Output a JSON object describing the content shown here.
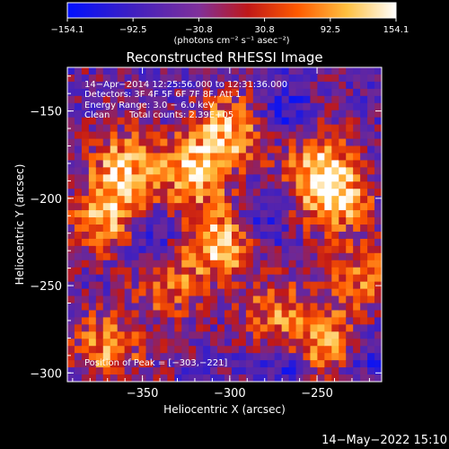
{
  "chart_data": {
    "type": "heatmap",
    "title": "Reconstructed RHESSI Image",
    "xlabel": "Heliocentric X (arcsec)",
    "ylabel": "Heliocentric Y (arcsec)",
    "xlim": [
      -393,
      -213
    ],
    "ylim": [
      -305,
      -125
    ],
    "x_ticks": [
      -350,
      -300,
      -250
    ],
    "y_ticks": [
      -150,
      -200,
      -250,
      -300
    ],
    "x_tick_labels": [
      "−350",
      "−300",
      "−250"
    ],
    "y_tick_labels": [
      "−150",
      "−200",
      "−250",
      "−300"
    ],
    "colorbar": {
      "range": [
        -154.1,
        154.1
      ],
      "ticks": [
        -154.1,
        -92.5,
        -30.8,
        30.8,
        92.5,
        154.1
      ],
      "tick_labels": [
        "−154.1",
        "−92.5",
        "−30.8",
        "30.8",
        "92.5",
        "154.1"
      ],
      "label": "(photons cm⁻² s⁻¹ asec⁻²)",
      "colors": [
        "#0010ff",
        "#5a1fa8",
        "#8a2f8a",
        "#c01010",
        "#ff6a00",
        "#ffd24a",
        "#ffffff"
      ]
    },
    "peak_position": [
      -303,
      -221
    ],
    "bright_regions": [
      {
        "x": -370,
        "y": -210,
        "level": 0.85
      },
      {
        "x": -360,
        "y": -180,
        "level": 0.75
      },
      {
        "x": -320,
        "y": -185,
        "level": 0.9
      },
      {
        "x": -305,
        "y": -225,
        "level": 1.0
      },
      {
        "x": -300,
        "y": -160,
        "level": 0.8
      },
      {
        "x": -240,
        "y": -200,
        "level": 0.9
      },
      {
        "x": -250,
        "y": -180,
        "level": 0.7
      },
      {
        "x": -245,
        "y": -285,
        "level": 0.85
      },
      {
        "x": -370,
        "y": -285,
        "level": 0.7
      },
      {
        "x": -335,
        "y": -250,
        "level": 0.6
      },
      {
        "x": -275,
        "y": -265,
        "level": 0.55
      },
      {
        "x": -225,
        "y": -245,
        "level": 0.6
      }
    ],
    "dim_regions": [
      {
        "x": -285,
        "y": -215
      },
      {
        "x": -345,
        "y": -225
      },
      {
        "x": -265,
        "y": -300
      },
      {
        "x": -225,
        "y": -290
      },
      {
        "x": -270,
        "y": -150
      }
    ]
  },
  "annotations": {
    "time_range": "14−Apr−2014 12:25:56.000 to 12:31:36.000",
    "detectors": "Detectors: 3F 4F 5F 6F 7F 8F, Att 1",
    "energy": "Energy Range: 3.0 − 6.0 keV",
    "method": "Clean",
    "counts": "Total counts: 2.39E+05",
    "peak": "Position of Peak = [−303,−221]"
  },
  "footer": {
    "timestamp": "14−May−2022 15:10"
  }
}
